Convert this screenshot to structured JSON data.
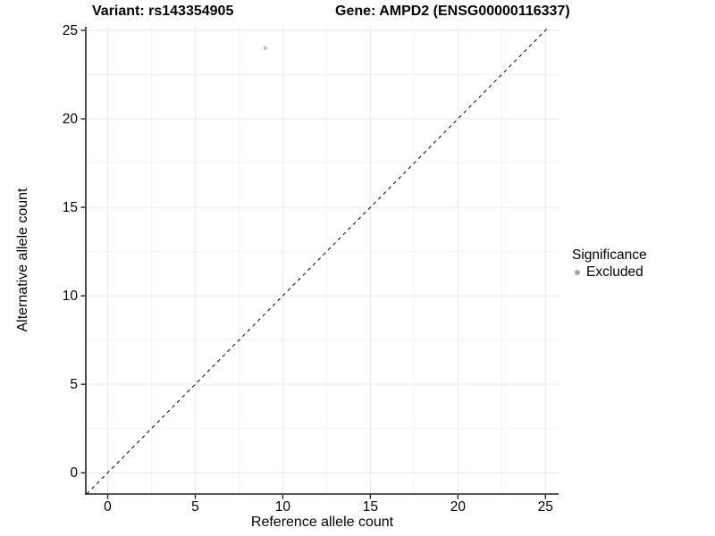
{
  "title": {
    "variant": "Variant: rs143354905",
    "gene": "Gene: AMPD2 (ENSG00000116337)"
  },
  "chart_data": {
    "type": "scatter",
    "title": "Variant: rs143354905   Gene: AMPD2 (ENSG00000116337)",
    "xlabel": "Reference allele count",
    "ylabel": "Alternative allele count",
    "xlim": [
      -1.25,
      25.75
    ],
    "ylim": [
      -1.2,
      25.2
    ],
    "x_ticks": [
      0,
      5,
      10,
      15,
      20,
      25
    ],
    "y_ticks": [
      0,
      5,
      10,
      15,
      20,
      25
    ],
    "x_minor": [
      2.5,
      7.5,
      12.5,
      17.5,
      22.5
    ],
    "y_minor": [
      2.5,
      7.5,
      12.5,
      17.5,
      22.5
    ],
    "grid": true,
    "series": [
      {
        "name": "Excluded",
        "color": "#c0c0c0",
        "points": [
          {
            "x": 9,
            "y": 24
          }
        ]
      }
    ],
    "reference_line": {
      "type": "identity",
      "equation": "y = x",
      "style": "dashed",
      "color": "#000000"
    },
    "legend": {
      "position": "right",
      "title": "Significance",
      "items": [
        {
          "label": "Excluded",
          "color": "#a6a6a6"
        }
      ]
    }
  },
  "colors": {
    "background": "#ffffff",
    "grid_major": "#e6e6e6",
    "grid_minor": "#f2f2f2",
    "axis": "#1f1f1f",
    "tick_label": "#000000",
    "dashed_line": "#000000"
  }
}
